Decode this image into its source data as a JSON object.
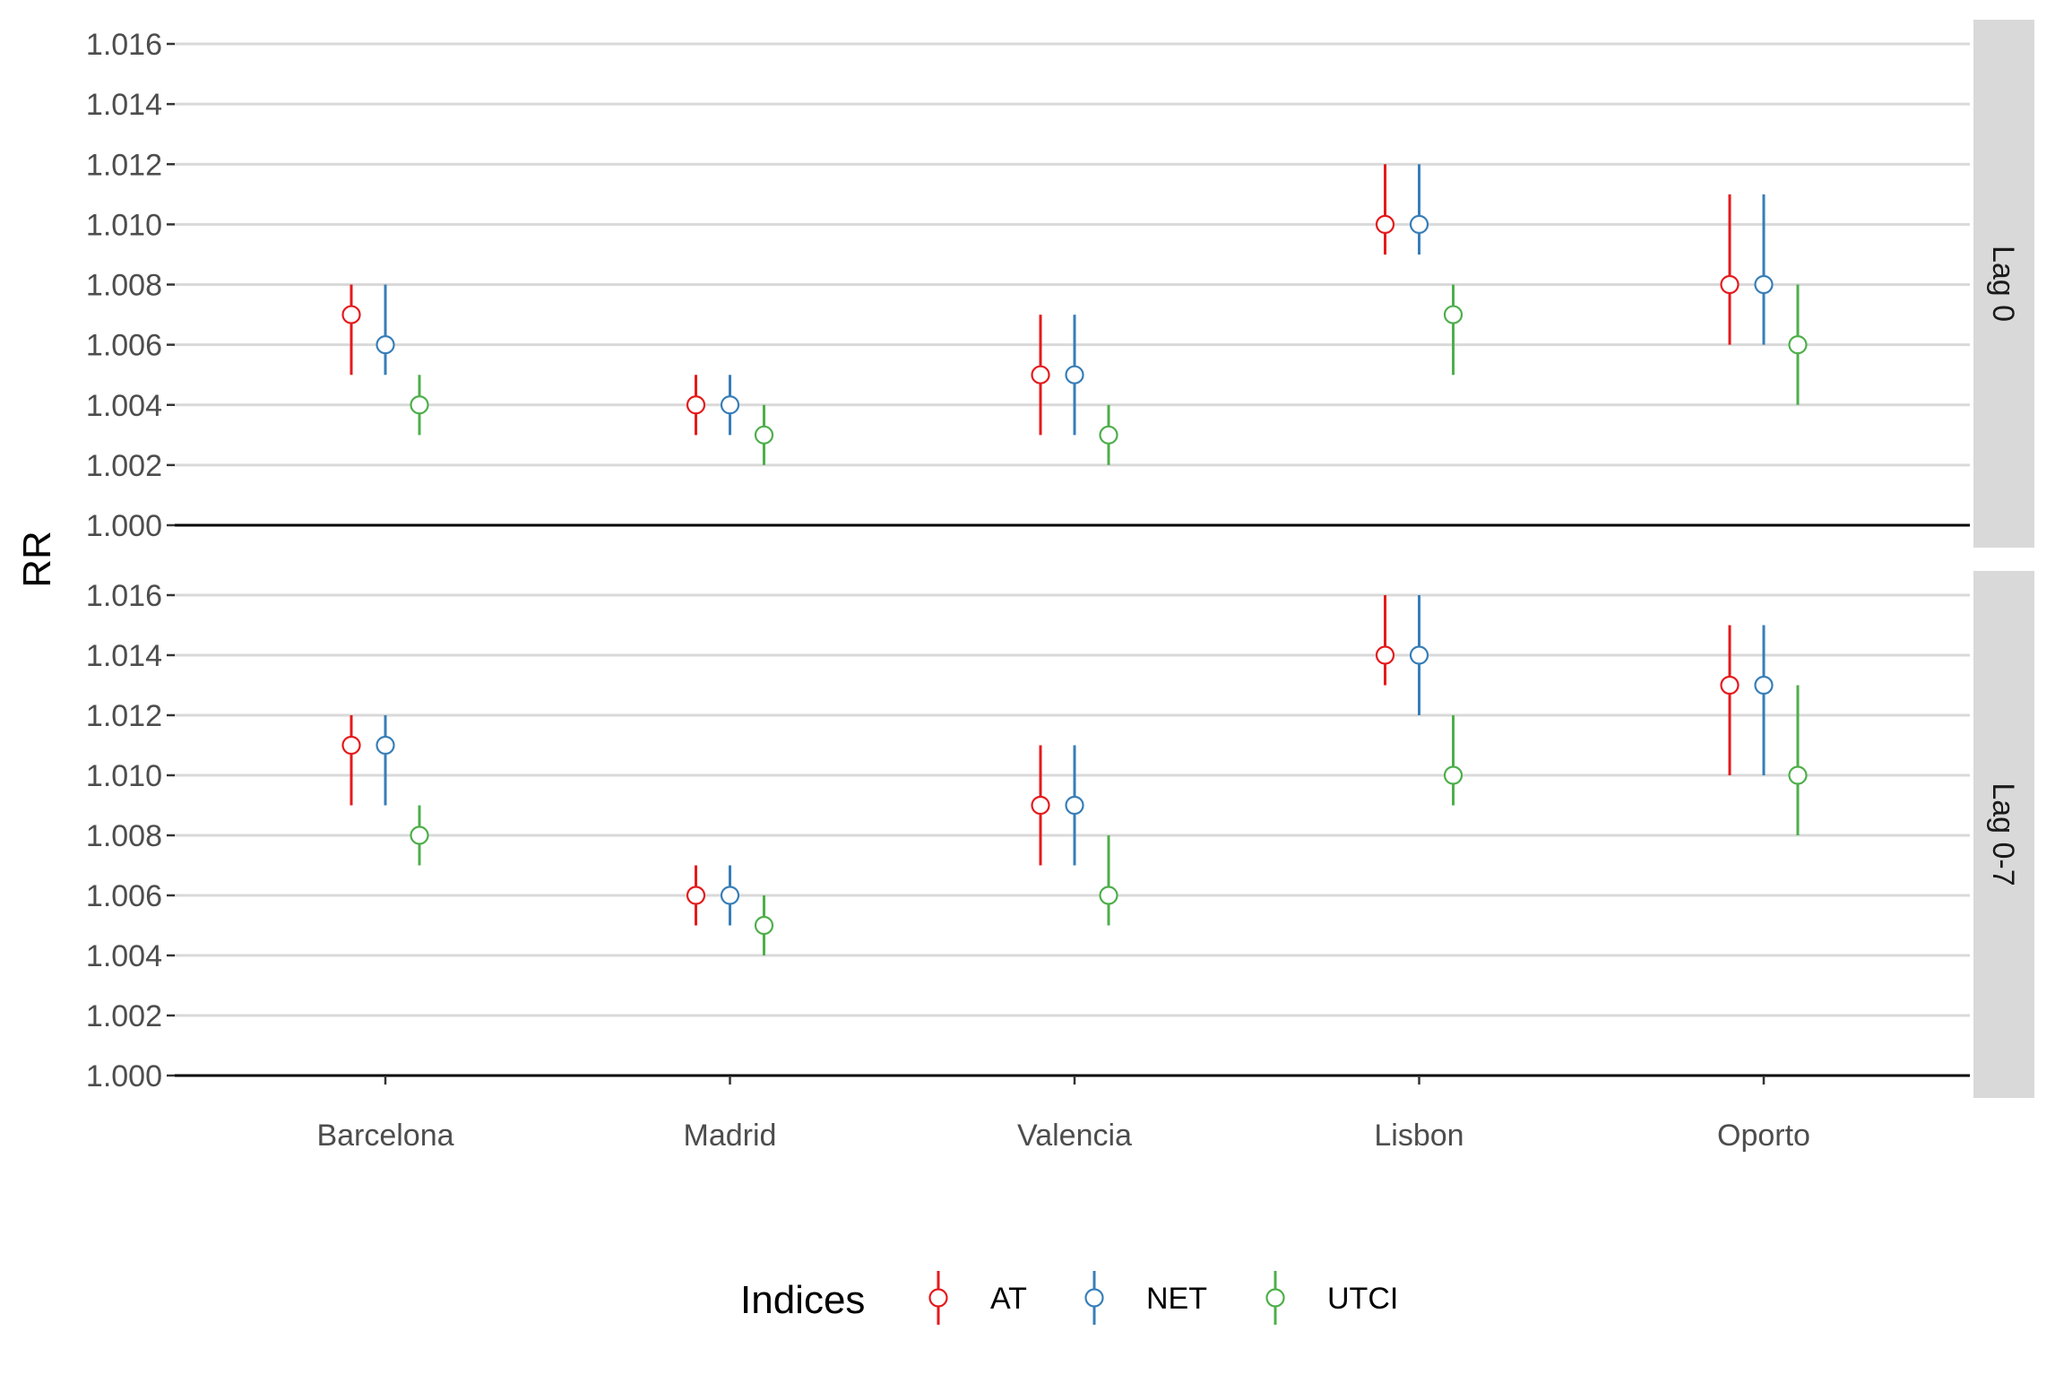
{
  "chart_data": {
    "type": "pointrange",
    "ylabel": "RR",
    "xlabel": "",
    "categories": [
      "Barcelona",
      "Madrid",
      "Valencia",
      "Lisbon",
      "Oporto"
    ],
    "yticks": [
      "1.000",
      "1.002",
      "1.004",
      "1.006",
      "1.008",
      "1.010",
      "1.012",
      "1.014",
      "1.016"
    ],
    "ylim": [
      1.0,
      1.016
    ],
    "grid": true,
    "legend": {
      "title": "Indices",
      "position": "bottom",
      "entries": [
        "AT",
        "NET",
        "UTCI"
      ]
    },
    "colors": {
      "AT": "#e41a1c",
      "NET": "#377eb8",
      "UTCI": "#4daf4a"
    },
    "facets": [
      {
        "label": "Lag 0",
        "series": [
          {
            "name": "AT",
            "estimate": [
              1.007,
              1.004,
              1.005,
              1.01,
              1.008
            ],
            "lower": [
              1.005,
              1.003,
              1.003,
              1.009,
              1.006
            ],
            "upper": [
              1.008,
              1.005,
              1.007,
              1.012,
              1.011
            ]
          },
          {
            "name": "NET",
            "estimate": [
              1.006,
              1.004,
              1.005,
              1.01,
              1.008
            ],
            "lower": [
              1.005,
              1.003,
              1.003,
              1.009,
              1.006
            ],
            "upper": [
              1.008,
              1.005,
              1.007,
              1.012,
              1.011
            ]
          },
          {
            "name": "UTCI",
            "estimate": [
              1.004,
              1.003,
              1.003,
              1.007,
              1.006
            ],
            "lower": [
              1.003,
              1.002,
              1.002,
              1.005,
              1.004
            ],
            "upper": [
              1.005,
              1.004,
              1.004,
              1.008,
              1.008
            ]
          }
        ]
      },
      {
        "label": "Lag 0-7",
        "series": [
          {
            "name": "AT",
            "estimate": [
              1.011,
              1.006,
              1.009,
              1.014,
              1.013
            ],
            "lower": [
              1.009,
              1.005,
              1.007,
              1.013,
              1.01
            ],
            "upper": [
              1.012,
              1.007,
              1.011,
              1.016,
              1.015
            ]
          },
          {
            "name": "NET",
            "estimate": [
              1.011,
              1.006,
              1.009,
              1.014,
              1.013
            ],
            "lower": [
              1.009,
              1.005,
              1.007,
              1.012,
              1.01
            ],
            "upper": [
              1.012,
              1.007,
              1.011,
              1.016,
              1.015
            ]
          },
          {
            "name": "UTCI",
            "estimate": [
              1.008,
              1.005,
              1.006,
              1.01,
              1.01
            ],
            "lower": [
              1.007,
              1.004,
              1.005,
              1.009,
              1.008
            ],
            "upper": [
              1.009,
              1.006,
              1.008,
              1.012,
              1.013
            ]
          }
        ]
      }
    ]
  }
}
